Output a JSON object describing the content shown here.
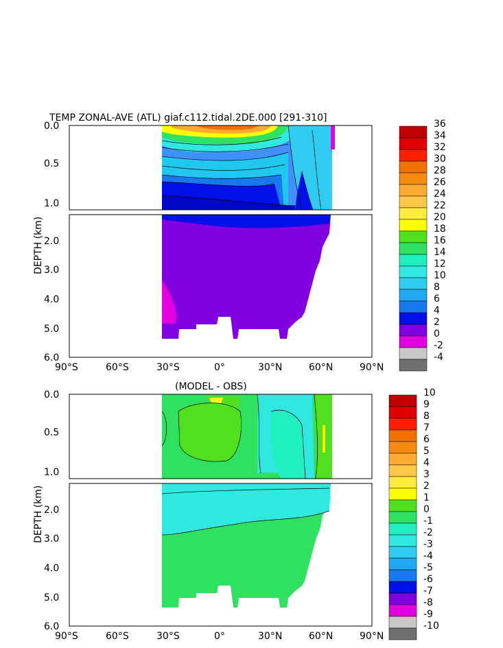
{
  "chart_data": [
    {
      "type": "contour",
      "title": "TEMP ZONAL-AVE (ATL) giaf.c112.tidal.2DE.000 [291-310]",
      "ylabel": "DEPTH (km)",
      "x_ticks": [
        "90°S",
        "60°S",
        "30°S",
        "0°",
        "30°N",
        "60°N",
        "90°N"
      ],
      "y_ticks_upper": [
        "0.0",
        "0.5",
        "1.0"
      ],
      "y_ticks_lower": [
        "2.0",
        "3.0",
        "4.0",
        "5.0",
        "6.0"
      ],
      "xlim": [
        -90,
        90
      ],
      "ylim": [
        0,
        6
      ],
      "colorbar": {
        "labels": [
          "36",
          "34",
          "32",
          "30",
          "28",
          "26",
          "24",
          "22",
          "20",
          "18",
          "16",
          "14",
          "12",
          "10",
          "8",
          "6",
          "4",
          "2",
          "0",
          "-2",
          "-4"
        ],
        "colors": [
          "#c00000",
          "#e00000",
          "#ff2000",
          "#f07000",
          "#f58a10",
          "#ffaa30",
          "#ffc848",
          "#ffea40",
          "#ffff00",
          "#50e020",
          "#30e060",
          "#20f0c0",
          "#30e8e0",
          "#30ccf0",
          "#20a8f0",
          "#1878f0",
          "#0010e8",
          "#8000e0",
          "#e000e0",
          "#c8c8c8",
          "#707070"
        ]
      }
    },
    {
      "type": "contour",
      "title": "(MODEL - OBS)",
      "ylabel": "DEPTH (km)",
      "x_ticks": [
        "90°S",
        "60°S",
        "30°S",
        "0°",
        "30°N",
        "60°N",
        "90°N"
      ],
      "y_ticks_upper": [
        "0.0",
        "0.5",
        "1.0"
      ],
      "y_ticks_lower": [
        "2.0",
        "3.0",
        "4.0",
        "5.0",
        "6.0"
      ],
      "xlim": [
        -90,
        90
      ],
      "ylim": [
        0,
        6
      ],
      "colorbar": {
        "labels": [
          "10",
          "9",
          "8",
          "7",
          "6",
          "5",
          "4",
          "3",
          "2",
          "1",
          "0",
          "-1",
          "-2",
          "-3",
          "-4",
          "-5",
          "-6",
          "-7",
          "-8",
          "-9",
          "-10"
        ],
        "colors": [
          "#c00000",
          "#e00000",
          "#ff2000",
          "#f07000",
          "#f58a10",
          "#ffaa30",
          "#ffc848",
          "#ffea40",
          "#ffff00",
          "#50e020",
          "#30e060",
          "#20f0c0",
          "#30e8e0",
          "#30ccf0",
          "#20a8f0",
          "#1878f0",
          "#0010e8",
          "#8000e0",
          "#e000e0",
          "#c8c8c8",
          "#707070"
        ]
      }
    }
  ]
}
